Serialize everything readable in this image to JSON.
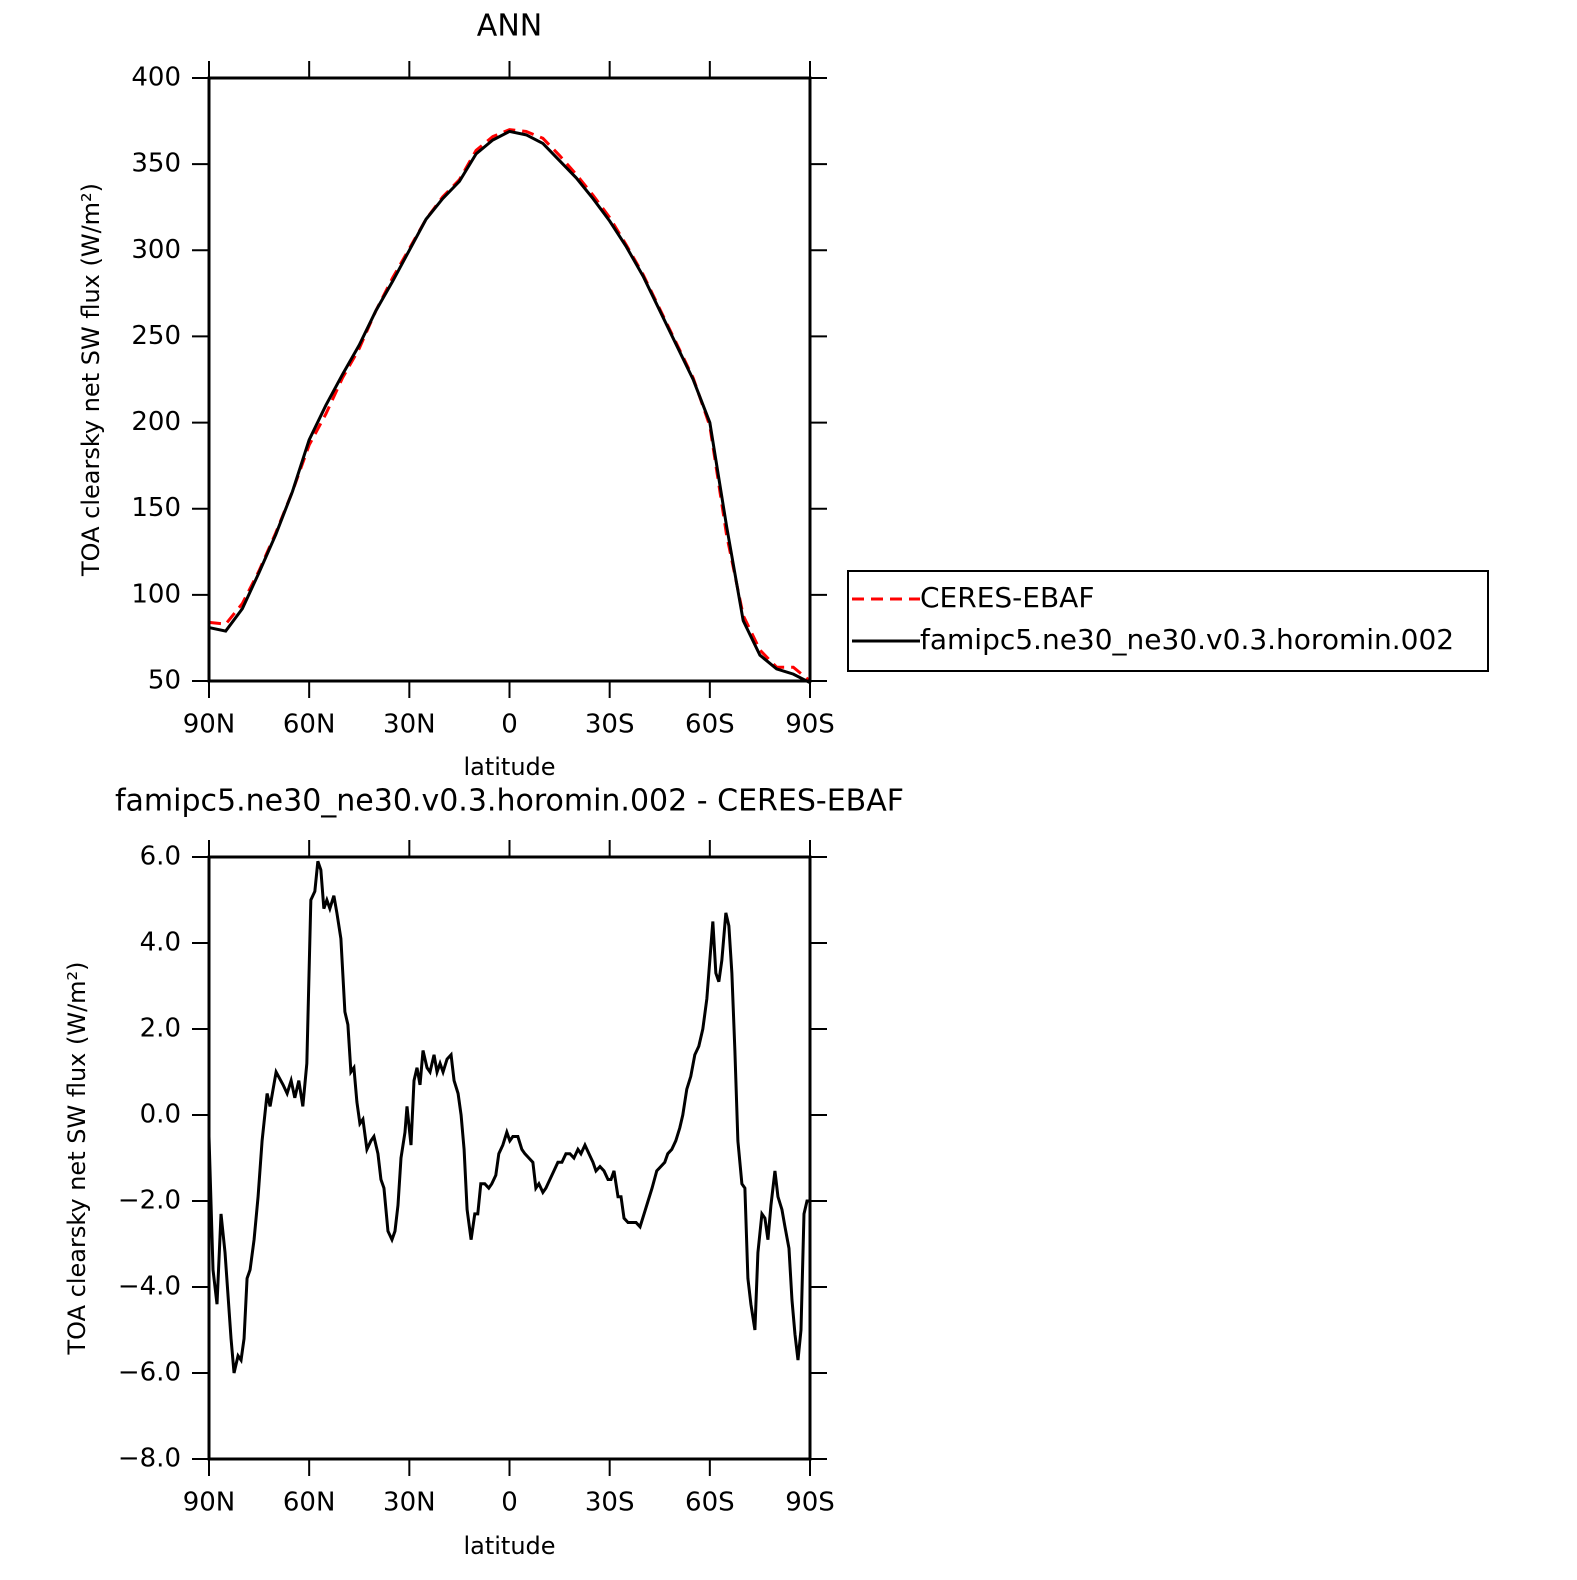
{
  "chart_data": [
    {
      "type": "line",
      "title": "ANN",
      "xlabel": "latitude",
      "ylabel": "TOA clearsky net SW flux (W/m²)",
      "x": [
        90,
        85,
        80,
        75,
        70,
        65,
        60,
        55,
        50,
        45,
        40,
        35,
        30,
        25,
        20,
        15,
        10,
        5,
        0,
        -5,
        -10,
        -15,
        -20,
        -25,
        -30,
        -35,
        -40,
        -45,
        -50,
        -55,
        -60,
        -65,
        -70,
        -75,
        -80,
        -85,
        -90
      ],
      "series": [
        {
          "name": "CERES-EBAF",
          "color": "#ff0000",
          "linestyle": "dashed",
          "values": [
            84,
            83,
            95,
            114,
            136,
            160,
            187,
            205,
            226,
            243,
            265,
            284,
            301,
            318,
            331,
            341,
            358,
            366,
            370,
            369,
            365,
            355,
            344,
            332,
            319,
            303,
            286,
            266,
            246,
            226,
            198,
            135,
            88,
            68,
            58,
            58,
            50
          ]
        },
        {
          "name": "famipc5.ne30_ne30.v0.3.horomin.002",
          "color": "#000000",
          "linestyle": "solid",
          "values": [
            81,
            79,
            92,
            113,
            135,
            160,
            190,
            210,
            228,
            245,
            265,
            282,
            300,
            318,
            330,
            340,
            356,
            364,
            369,
            367,
            362,
            352,
            342,
            330,
            317,
            302,
            285,
            265,
            245,
            225,
            200,
            140,
            85,
            65,
            57,
            54,
            49
          ]
        }
      ],
      "xlim": [
        90,
        -90
      ],
      "ylim": [
        50,
        400
      ],
      "xticks": [
        {
          "value": 90,
          "label": "90N"
        },
        {
          "value": 60,
          "label": "60N"
        },
        {
          "value": 30,
          "label": "30N"
        },
        0,
        {
          "value": -30,
          "label": "30S"
        },
        {
          "value": -60,
          "label": "60S"
        },
        {
          "value": -90,
          "label": "90S"
        }
      ],
      "yticks": [
        50,
        100,
        150,
        200,
        250,
        300,
        350,
        400
      ],
      "legend": "right"
    },
    {
      "type": "line",
      "title": "famipc5.ne30_ne30.v0.3.horomin.002 - CERES-EBAF",
      "xlabel": "latitude",
      "ylabel": "TOA clearsky net SW flux (W/m²)",
      "x": [
        90,
        88.8,
        87.6,
        86.4,
        85.2,
        83.4,
        82.5,
        81.3,
        80.4,
        79.5,
        78.6,
        77.7,
        76.5,
        75.3,
        74.1,
        72.6,
        71.7,
        69.9,
        67.8,
        66.6,
        65.4,
        64.3,
        63.1,
        61.9,
        60.7,
        59.5,
        58.3,
        57.4,
        56.5,
        55.6,
        54.7,
        53.8,
        52.6,
        51.7,
        50.5,
        49.3,
        48.4,
        47.5,
        46.6,
        45.7,
        44.8,
        43.9,
        42.7,
        41.5,
        40.6,
        39.4,
        38.5,
        37.6,
        36.4,
        35.2,
        34.3,
        33.4,
        32.5,
        31.3,
        30.7,
        29.5,
        28.6,
        27.7,
        26.8,
        25.9,
        24.7,
        23.8,
        22.6,
        21.7,
        20.8,
        19.9,
        18.7,
        17.5,
        16.6,
        15.4,
        14.5,
        13.6,
        12.7,
        11.5,
        10.4,
        9.5,
        8.6,
        7.4,
        6.2,
        5.3,
        4.1,
        3.2,
        2.0,
        0.8,
        -0.1,
        -1.0,
        -2.5,
        -3.7,
        -4.6,
        -5.8,
        -7.0,
        -7.9,
        -8.8,
        -10.0,
        -10.9,
        -12.1,
        -13.3,
        -14.5,
        -15.7,
        -16.9,
        -18.1,
        -19.3,
        -20.5,
        -21.4,
        -22.6,
        -23.8,
        -25.0,
        -25.9,
        -27.1,
        -28.3,
        -29.5,
        -30.4,
        -31.3,
        -32.5,
        -33.4,
        -34.3,
        -35.5,
        -36.7,
        -37.9,
        -39.1,
        -40.3,
        -41.5,
        -42.7,
        -44.1,
        -45.3,
        -46.5,
        -47.4,
        -48.6,
        -49.8,
        -51.0,
        -51.9,
        -53.1,
        -54.3,
        -55.5,
        -56.7,
        -57.9,
        -59.1,
        -60.0,
        -60.9,
        -61.8,
        -62.7,
        -63.6,
        -64.8,
        -65.7,
        -66.6,
        -67.5,
        -68.4,
        -69.6,
        -70.5,
        -71.4,
        -72.3,
        -73.5,
        -74.4,
        -75.6,
        -76.5,
        -77.4,
        -78.3,
        -79.5,
        -80.4,
        -81.6,
        -82.5,
        -83.7,
        -84.6,
        -85.5,
        -86.4,
        -87.3,
        -88.2,
        -89.1,
        -90
      ],
      "series": [
        {
          "color": "#000000",
          "linestyle": "solid",
          "values": [
            -0.5,
            -3.6,
            -4.4,
            -2.3,
            -3.2,
            -5.2,
            -6.0,
            -5.6,
            -5.7,
            -5.2,
            -3.8,
            -3.6,
            -2.9,
            -1.9,
            -0.6,
            0.5,
            0.2,
            1.0,
            0.7,
            0.5,
            0.8,
            0.4,
            0.8,
            0.2,
            1.2,
            5.0,
            5.2,
            5.9,
            5.7,
            4.8,
            5.0,
            4.8,
            5.1,
            4.7,
            4.1,
            2.4,
            2.1,
            1.0,
            1.1,
            0.3,
            -0.2,
            -0.1,
            -0.8,
            -0.6,
            -0.5,
            -0.9,
            -1.5,
            -1.7,
            -2.7,
            -2.9,
            -2.7,
            -2.1,
            -1.0,
            -0.4,
            0.2,
            -0.7,
            0.8,
            1.1,
            0.7,
            1.5,
            1.1,
            1.0,
            1.4,
            1.0,
            1.2,
            1.0,
            1.3,
            1.4,
            0.8,
            0.5,
            0.0,
            -0.8,
            -2.2,
            -2.9,
            -2.3,
            -2.3,
            -1.6,
            -1.6,
            -1.7,
            -1.6,
            -1.4,
            -0.9,
            -0.7,
            -0.4,
            -0.6,
            -0.5,
            -0.5,
            -0.8,
            -0.9,
            -1.0,
            -1.1,
            -1.7,
            -1.6,
            -1.8,
            -1.7,
            -1.5,
            -1.3,
            -1.1,
            -1.1,
            -0.9,
            -0.9,
            -1.0,
            -0.8,
            -0.9,
            -0.7,
            -0.9,
            -1.1,
            -1.3,
            -1.2,
            -1.3,
            -1.5,
            -1.5,
            -1.3,
            -1.9,
            -1.9,
            -2.4,
            -2.5,
            -2.5,
            -2.5,
            -2.6,
            -2.3,
            -2.0,
            -1.7,
            -1.3,
            -1.2,
            -1.1,
            -0.9,
            -0.8,
            -0.6,
            -0.3,
            0.0,
            0.6,
            0.9,
            1.4,
            1.6,
            2.0,
            2.7,
            3.6,
            4.5,
            3.3,
            3.1,
            3.6,
            4.7,
            4.4,
            3.3,
            1.5,
            -0.6,
            -1.6,
            -1.7,
            -3.8,
            -4.4,
            -5.0,
            -3.2,
            -2.3,
            -2.4,
            -2.9,
            -2.1,
            -1.3,
            -1.9,
            -2.2,
            -2.6,
            -3.1,
            -4.3,
            -5.1,
            -5.7,
            -5.0,
            -2.3,
            -2.0,
            -2.0
          ]
        }
      ],
      "xlim": [
        90,
        -90
      ],
      "ylim": [
        -8,
        6
      ],
      "xticks": [
        {
          "value": 90,
          "label": "90N"
        },
        {
          "value": 60,
          "label": "60N"
        },
        {
          "value": 30,
          "label": "30N"
        },
        0,
        {
          "value": -30,
          "label": "30S"
        },
        {
          "value": -60,
          "label": "60S"
        },
        {
          "value": -90,
          "label": "90S"
        }
      ],
      "yticks": [
        {
          "value": -8,
          "label": "−8.0"
        },
        {
          "value": -6,
          "label": "−6.0"
        },
        {
          "value": -4,
          "label": "−4.0"
        },
        {
          "value": -2,
          "label": "−2.0"
        },
        {
          "value": 0,
          "label": "0.0"
        },
        {
          "value": 2,
          "label": "2.0"
        },
        {
          "value": 4,
          "label": "4.0"
        },
        {
          "value": 6,
          "label": "6.0"
        }
      ]
    }
  ]
}
